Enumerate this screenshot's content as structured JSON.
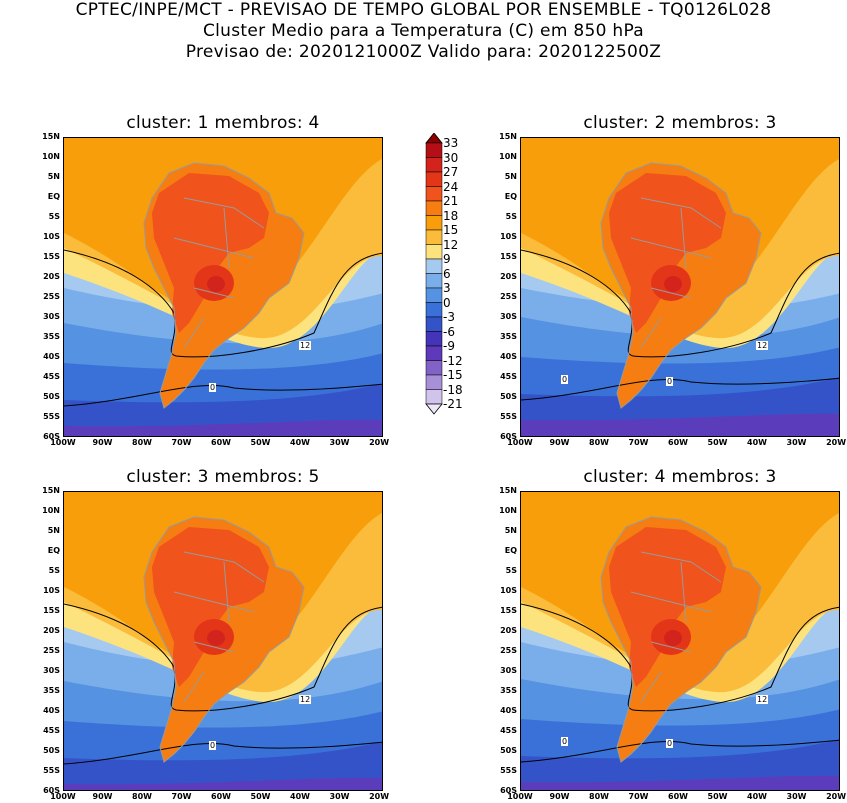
{
  "header": {
    "line1": "CPTEC/INPE/MCT - PREVISAO DE TEMPO GLOBAL POR ENSEMBLE - TQ0126L028",
    "line2": "Cluster Medio para a Temperatura (C) em 850 hPa",
    "line3": "Previsao de: 2020121000Z   Valido para: 2020122500Z"
  },
  "axes": {
    "lat_labels": [
      "15N",
      "10N",
      "5N",
      "EQ",
      "5S",
      "10S",
      "15S",
      "20S",
      "25S",
      "30S",
      "35S",
      "40S",
      "45S",
      "50S",
      "55S",
      "60S"
    ],
    "lon_labels": [
      "100W",
      "90W",
      "80W",
      "70W",
      "60W",
      "50W",
      "40W",
      "30W",
      "20W"
    ]
  },
  "panels": [
    {
      "title": "cluster: 1   membros: 4",
      "contour_labels": [
        "12",
        "0"
      ]
    },
    {
      "title": "cluster: 2   membros: 3",
      "contour_labels": [
        "12",
        "0",
        "0"
      ]
    },
    {
      "title": "cluster: 3   membros: 5",
      "contour_labels": [
        "12",
        "0"
      ]
    },
    {
      "title": "cluster: 4   membros: 3",
      "contour_labels": [
        "12",
        "0",
        "0"
      ]
    }
  ],
  "colorbar": {
    "labels": [
      "33",
      "30",
      "27",
      "24",
      "21",
      "18",
      "15",
      "12",
      "9",
      "6",
      "3",
      "0",
      "-3",
      "-6",
      "-9",
      "-12",
      "-15",
      "-18",
      "-21"
    ],
    "colors": [
      "#8b0000",
      "#b40f16",
      "#d3231d",
      "#e33619",
      "#f0531b",
      "#f57d12",
      "#f89e0a",
      "#fbbb3b",
      "#fce37d",
      "#a6c9f0",
      "#79aeea",
      "#5592e2",
      "#3a71d8",
      "#3553c9",
      "#4435b8",
      "#5e39b9",
      "#8362c8",
      "#a890d8",
      "#d0c4ec",
      "#ece8f8"
    ]
  },
  "colors": {
    "hot": "#f0531b",
    "warm": "#f89e0a",
    "cool": "#79aeea",
    "cold": "#3a71d8"
  }
}
